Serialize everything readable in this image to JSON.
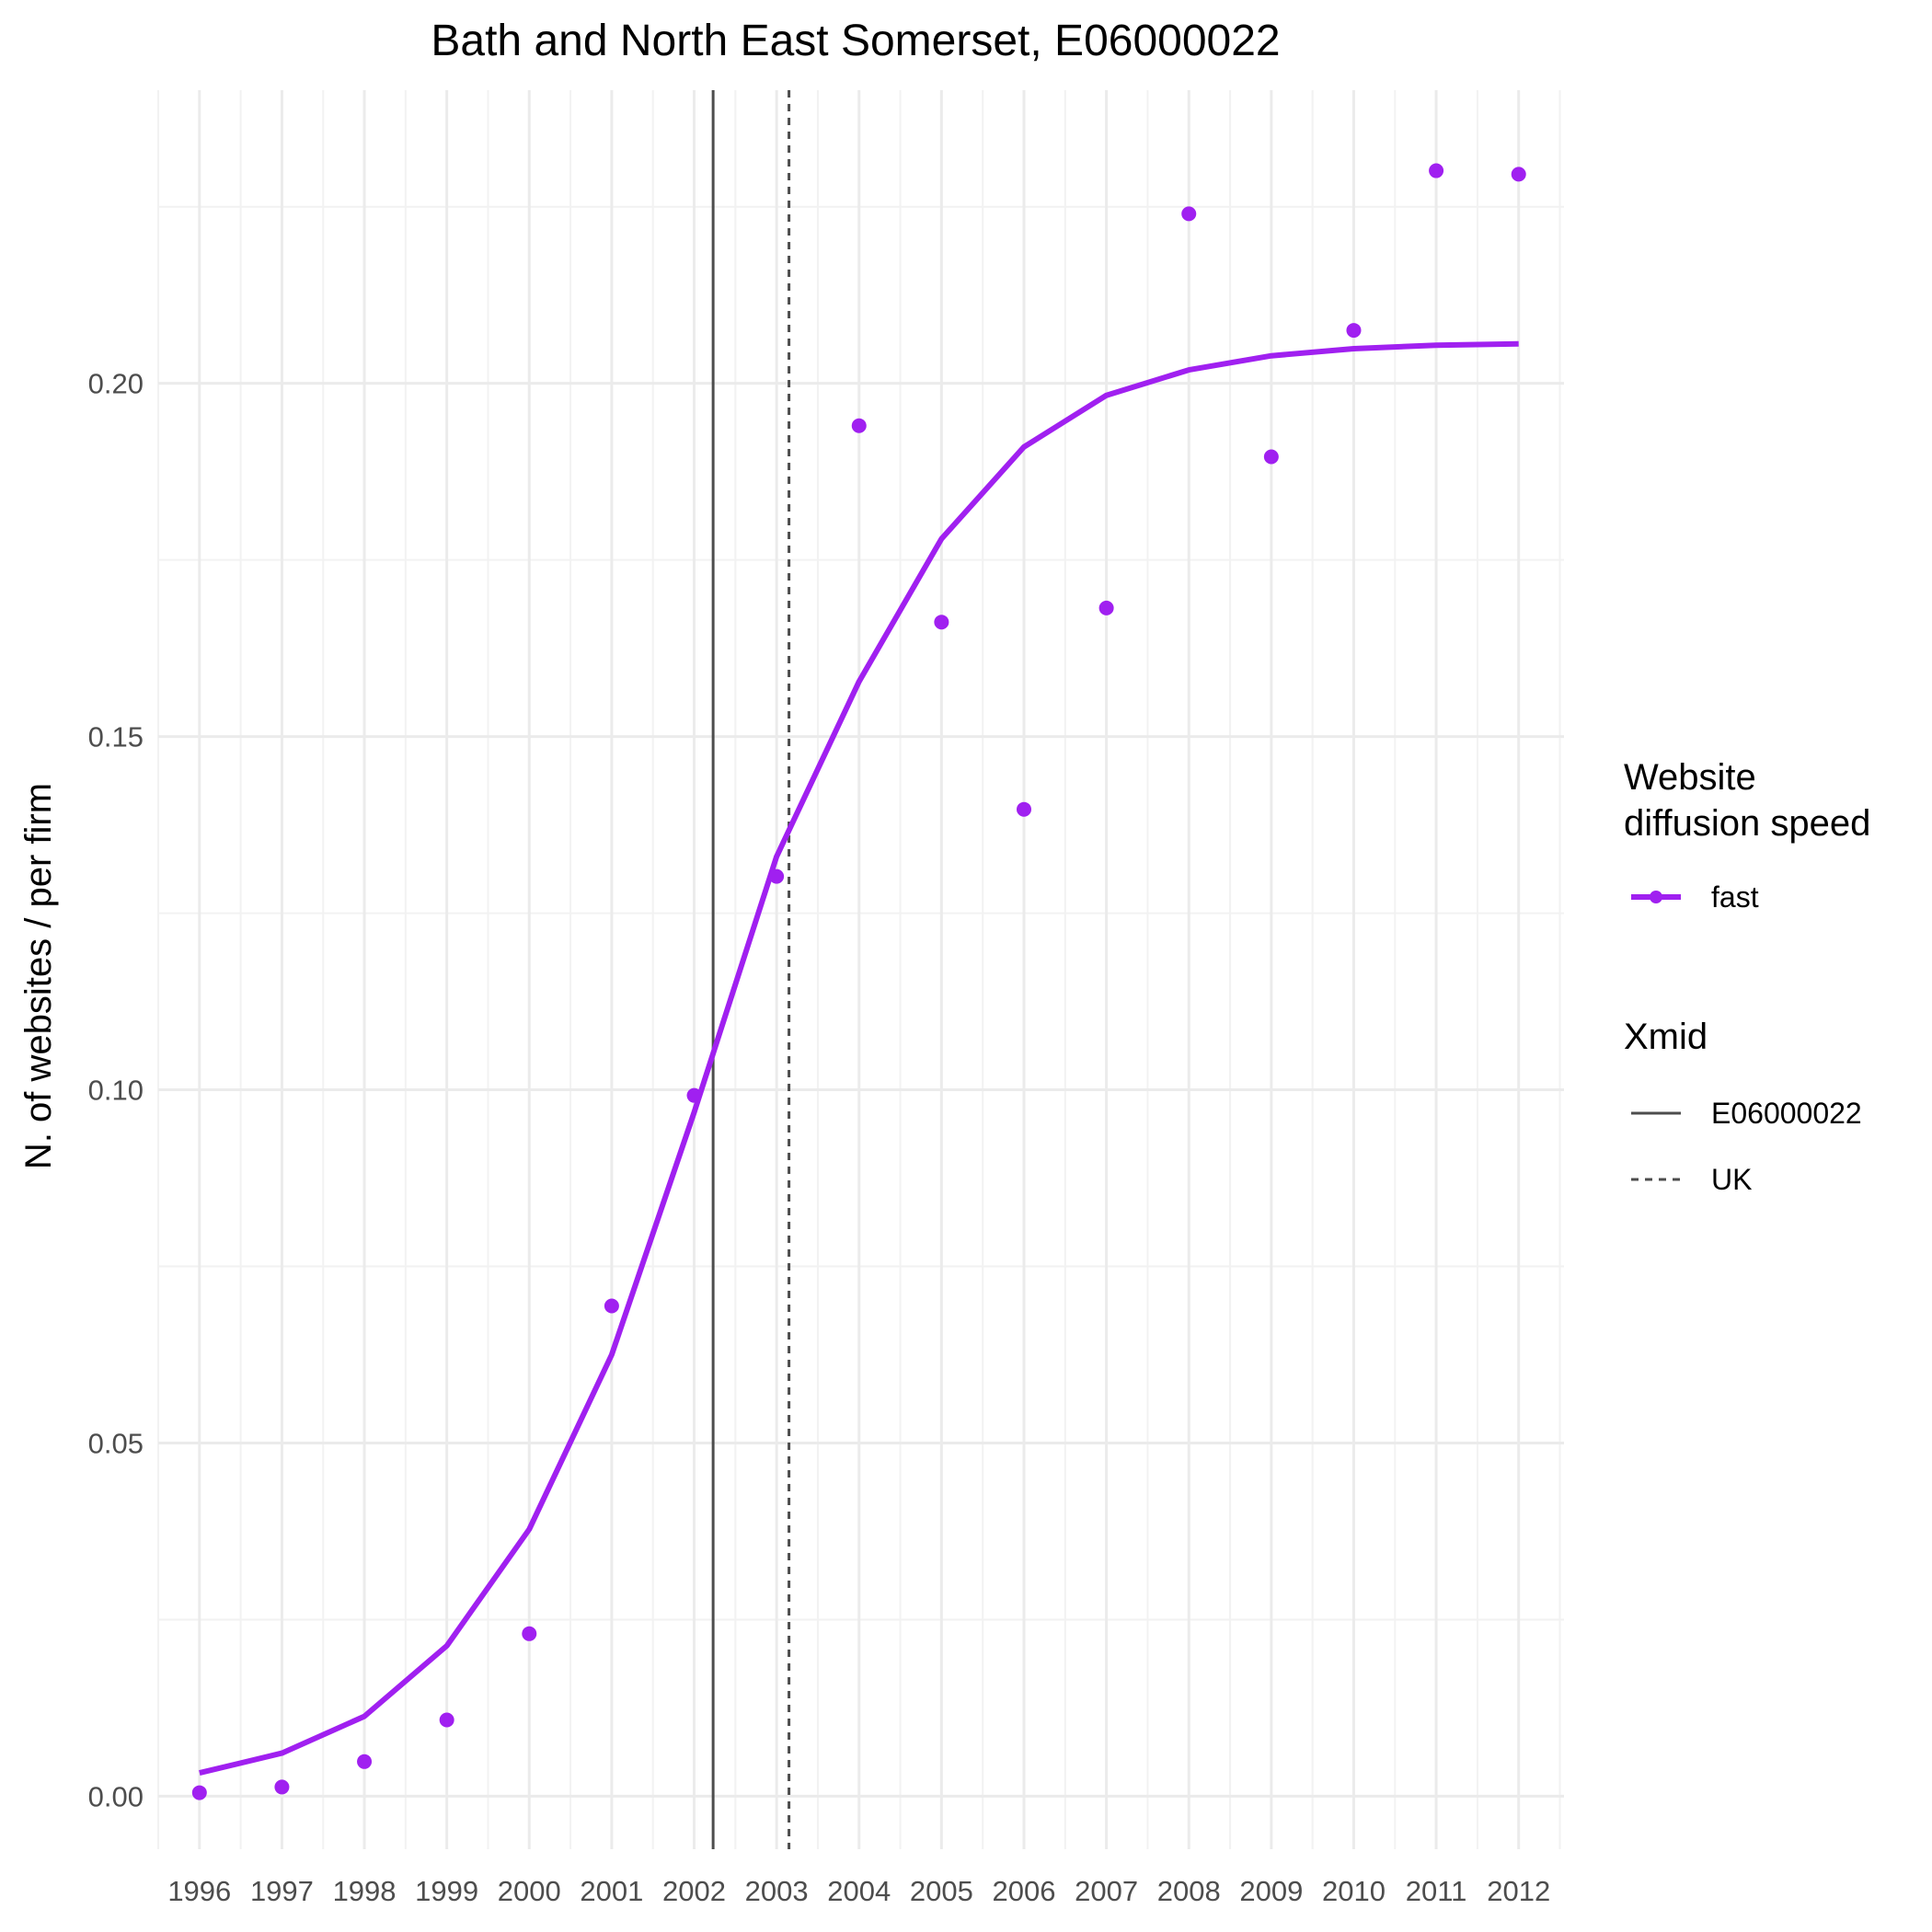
{
  "chart_data": {
    "type": "scatter",
    "title": "Bath and North East Somerset, E06000022",
    "xlabel": "",
    "ylabel": "N. of websites / per firm",
    "x": [
      1996,
      1997,
      1998,
      1999,
      2000,
      2001,
      2002,
      2003,
      2004,
      2005,
      2006,
      2007,
      2008,
      2009,
      2010,
      2011,
      2012
    ],
    "x_tick_labels": [
      "1996",
      "1997",
      "1998",
      "1999",
      "2000",
      "2001",
      "2002",
      "2003",
      "2004",
      "2005",
      "2006",
      "2007",
      "2008",
      "2009",
      "2010",
      "2011",
      "2012"
    ],
    "y_ticks": [
      0.0,
      0.05,
      0.1,
      0.15,
      0.2
    ],
    "y_tick_labels": [
      "0.00",
      "0.05",
      "0.10",
      "0.15",
      "0.20"
    ],
    "xlim": [
      1995.5,
      2012.55
    ],
    "ylim": [
      -0.0075,
      0.2415
    ],
    "grid": true,
    "series": [
      {
        "name": "fast",
        "points": [
          0.0005,
          0.0013,
          0.0049,
          0.0108,
          0.023,
          0.0694,
          0.0992,
          0.1302,
          0.194,
          0.1662,
          0.1397,
          0.1682,
          0.224,
          0.1896,
          0.2075,
          0.2301,
          0.2296
        ],
        "fitted": [
          0.0033,
          0.0061,
          0.0113,
          0.0213,
          0.0378,
          0.0625,
          0.0968,
          0.133,
          0.1578,
          0.178,
          0.191,
          0.1983,
          0.2019,
          0.2039,
          0.2049,
          0.2054,
          0.2056
        ],
        "color": "#a020f0"
      }
    ],
    "vlines": [
      {
        "name": "E06000022",
        "x": 2002.23,
        "linetype": "solid",
        "color": "#4d4d4d"
      },
      {
        "name": "UK",
        "x": 2003.15,
        "linetype": "dashed",
        "color": "#4d4d4d"
      }
    ],
    "legend": {
      "placement": "right",
      "groups": [
        {
          "title_lines": [
            "Website",
            "diffusion speed"
          ],
          "entries": [
            {
              "label": "fast",
              "kind": "line-point",
              "color": "#a020f0"
            }
          ]
        },
        {
          "title_lines": [
            "Xmid"
          ],
          "entries": [
            {
              "label": "E06000022",
              "kind": "solid"
            },
            {
              "label": "UK",
              "kind": "dashed"
            }
          ]
        }
      ]
    }
  }
}
